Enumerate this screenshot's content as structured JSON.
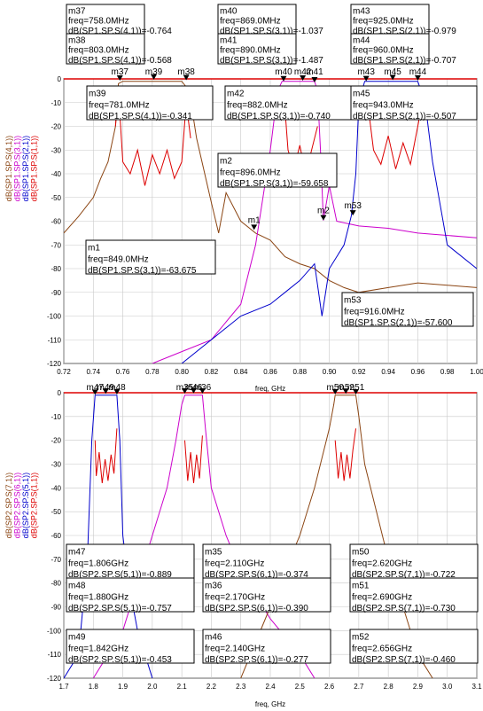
{
  "chart_data": [
    {
      "type": "line",
      "xlabel": "freq, GHz",
      "ylabel_series": [
        {
          "label": "dB(SP1.SP.S(4,1))",
          "color": "#8b4513"
        },
        {
          "label": "dB(SP1.SP.S(3,1))",
          "color": "#cc00cc"
        },
        {
          "label": "dB(SP1.SP.S(2,1))",
          "color": "#0000cc"
        },
        {
          "label": "dB(SP1.SP.S(1,1))",
          "color": "#dd0000"
        }
      ],
      "xlim": [
        0.72,
        1.0
      ],
      "ylim": [
        -120,
        0
      ],
      "xticks": [
        0.72,
        0.74,
        0.76,
        0.78,
        0.8,
        0.82,
        0.84,
        0.86,
        0.88,
        0.9,
        0.92,
        0.94,
        0.96,
        0.98,
        1.0
      ],
      "xtick_labels": [
        "0.72",
        "0.74",
        "0.76",
        "0.78",
        "0.80",
        "0.82",
        "0.84",
        "0.86",
        "0.88",
        "0.90",
        "0.92",
        "0.94",
        "0.96",
        "0.98",
        "1.00"
      ],
      "yticks": [
        0,
        -10,
        -20,
        -30,
        -40,
        -50,
        -60,
        -70,
        -80,
        -90,
        -100,
        -110,
        -120
      ],
      "ytick_labels": [
        "0",
        "-10",
        "-20",
        "-30",
        "-40",
        "-50",
        "-60",
        "-70",
        "-80",
        "-90",
        "-100",
        "-110",
        "-120"
      ],
      "series": [
        {
          "color": "#8b4513",
          "x": [
            0.72,
            0.73,
            0.74,
            0.745,
            0.75,
            0.755,
            0.757,
            0.76,
            0.8,
            0.805,
            0.81,
            0.82,
            0.825,
            0.83,
            0.84,
            0.85,
            0.86,
            0.87,
            0.88,
            0.89,
            0.9,
            0.91,
            0.92,
            0.94,
            0.96,
            0.98,
            1.0
          ],
          "y": [
            -65,
            -58,
            -50,
            -42,
            -35,
            -20,
            -2,
            -1,
            -1,
            -5,
            -25,
            -52,
            -65,
            -48,
            -60,
            -65,
            -68,
            -75,
            -78,
            -80,
            -85,
            -88,
            -90,
            -88,
            -86,
            -87,
            -88
          ]
        },
        {
          "color": "#cc00cc",
          "x": [
            0.78,
            0.8,
            0.82,
            0.84,
            0.85,
            0.86,
            0.865,
            0.868,
            0.87,
            0.89,
            0.892,
            0.894,
            0.896,
            0.9,
            0.905,
            0.92,
            0.94,
            0.96,
            1.0
          ],
          "y": [
            -120,
            -115,
            -110,
            -95,
            -70,
            -30,
            -5,
            -1,
            -1,
            -1,
            -5,
            -30,
            -59.7,
            -45,
            -60,
            -62,
            -63,
            -65,
            -67
          ]
        },
        {
          "color": "#0000cc",
          "x": [
            0.8,
            0.84,
            0.86,
            0.87,
            0.88,
            0.89,
            0.895,
            0.9,
            0.91,
            0.915,
            0.918,
            0.92,
            0.924,
            0.96,
            0.965,
            0.97,
            0.98,
            1.0
          ],
          "y": [
            -120,
            -100,
            -95,
            -90,
            -85,
            -78,
            -100,
            -80,
            -70,
            -57.6,
            -40,
            -10,
            -1,
            -1,
            -10,
            -35,
            -70,
            -80
          ]
        },
        {
          "color": "#dd0000",
          "x": [
            0.755,
            0.757,
            0.76,
            0.765,
            0.77,
            0.775,
            0.78,
            0.785,
            0.79,
            0.795,
            0.8,
            0.803,
            0.806
          ],
          "y": [
            -20,
            -5,
            -35,
            -40,
            -30,
            -45,
            -32,
            -40,
            -30,
            -42,
            -35,
            -10,
            -25
          ]
        },
        {
          "color": "#dd0000",
          "x": [
            0.867,
            0.869,
            0.872,
            0.876,
            0.88,
            0.884,
            0.888,
            0.892
          ],
          "y": [
            -15,
            -5,
            -30,
            -38,
            -28,
            -40,
            -30,
            -20
          ]
        },
        {
          "color": "#dd0000",
          "x": [
            0.922,
            0.925,
            0.93,
            0.935,
            0.94,
            0.945,
            0.95,
            0.955,
            0.96,
            0.963
          ],
          "y": [
            -15,
            -5,
            -30,
            -36,
            -24,
            -38,
            -27,
            -36,
            -20,
            -10
          ]
        }
      ],
      "markers_on_plot": [
        {
          "name": "m37",
          "x": 0.758,
          "y": -0.764
        },
        {
          "name": "m39",
          "x": 0.781,
          "y": -0.341
        },
        {
          "name": "m38",
          "x": 0.803,
          "y": -0.568
        },
        {
          "name": "m40",
          "x": 0.869,
          "y": -1.037
        },
        {
          "name": "m42",
          "x": 0.882,
          "y": -0.74
        },
        {
          "name": "m41",
          "x": 0.89,
          "y": -1.487
        },
        {
          "name": "m43",
          "x": 0.925,
          "y": -0.979
        },
        {
          "name": "m45",
          "x": 0.943,
          "y": -0.507
        },
        {
          "name": "m44",
          "x": 0.96,
          "y": -0.707
        },
        {
          "name": "m1",
          "x": 0.849,
          "y": -63.675
        },
        {
          "name": "m2",
          "x": 0.896,
          "y": -59.658
        },
        {
          "name": "m53",
          "x": 0.916,
          "y": -57.6
        }
      ],
      "marker_boxes": [
        {
          "name": "m37",
          "line1": "freq=758.0MHz",
          "line2": "dB(SP1.SP.S(4,1))=-0.764"
        },
        {
          "name": "m38",
          "line1": "freq=803.0MHz",
          "line2": "dB(SP1.SP.S(4,1))=-0.568"
        },
        {
          "name": "m40",
          "line1": "freq=869.0MHz",
          "line2": "dB(SP1.SP.S(3,1))=-1.037"
        },
        {
          "name": "m41",
          "line1": "freq=890.0MHz",
          "line2": "dB(SP1.SP.S(3,1))=-1.487"
        },
        {
          "name": "m43",
          "line1": "freq=925.0MHz",
          "line2": "dB(SP1.SP.S(2,1))=-0.979"
        },
        {
          "name": "m44",
          "line1": "freq=960.0MHz",
          "line2": "dB(SP1.SP.S(2,1))=-0.707"
        },
        {
          "name": "m39",
          "line1": "freq=781.0MHz",
          "line2": "dB(SP1.SP.S(4,1))=-0.341"
        },
        {
          "name": "m42",
          "line1": "freq=882.0MHz",
          "line2": "dB(SP1.SP.S(3,1))=-0.740"
        },
        {
          "name": "m45",
          "line1": "freq=943.0MHz",
          "line2": "dB(SP1.SP.S(2,1))=-0.507"
        },
        {
          "name": "m2",
          "line1": "freq=896.0MHz",
          "line2": "dB(SP1.SP.S(3,1))=-59.658"
        },
        {
          "name": "m1",
          "line1": "freq=849.0MHz",
          "line2": "dB(SP1.SP.S(3,1))=-63.675"
        },
        {
          "name": "m53",
          "line1": "freq=916.0MHz",
          "line2": "dB(SP1.SP.S(2,1))=-57.600"
        }
      ]
    },
    {
      "type": "line",
      "xlabel": "freq, GHz",
      "ylabel_series": [
        {
          "label": "dB(SP2.SP.S(7,1))",
          "color": "#8b4513"
        },
        {
          "label": "dB(SP2.SP.S(6,1))",
          "color": "#cc00cc"
        },
        {
          "label": "dB(SP2.SP.S(5,1))",
          "color": "#0000cc"
        },
        {
          "label": "dB(SP2.SP.S(1,1))",
          "color": "#dd0000"
        }
      ],
      "xlim": [
        1.7,
        3.1
      ],
      "ylim": [
        -120,
        0
      ],
      "xticks": [
        1.7,
        1.8,
        1.9,
        2.0,
        2.1,
        2.2,
        2.3,
        2.4,
        2.5,
        2.6,
        2.7,
        2.8,
        2.9,
        3.0,
        3.1
      ],
      "xtick_labels": [
        "1.7",
        "1.8",
        "1.9",
        "2.0",
        "2.1",
        "2.2",
        "2.3",
        "2.4",
        "2.5",
        "2.6",
        "2.7",
        "2.8",
        "2.9",
        "3.0",
        "3.1"
      ],
      "yticks": [
        0,
        -10,
        -20,
        -30,
        -40,
        -50,
        -60,
        -70,
        -80,
        -90,
        -100,
        -110,
        -120
      ],
      "ytick_labels": [
        "0",
        "-10",
        "-20",
        "-30",
        "-40",
        "-50",
        "-60",
        "-70",
        "-80",
        "-90",
        "-100",
        "-110",
        "-120"
      ],
      "series": [
        {
          "color": "#0000cc",
          "x": [
            1.7,
            1.75,
            1.78,
            1.795,
            1.806,
            1.88,
            1.89,
            1.9,
            1.92,
            1.95,
            2.0
          ],
          "y": [
            -120,
            -110,
            -70,
            -20,
            -1,
            -1,
            -20,
            -60,
            -80,
            -100,
            -120
          ]
        },
        {
          "color": "#cc00cc",
          "x": [
            1.8,
            1.9,
            1.95,
            2.0,
            2.05,
            2.08,
            2.1,
            2.11,
            2.17,
            2.18,
            2.2,
            2.25,
            2.3,
            2.4,
            2.5,
            2.55
          ],
          "y": [
            -120,
            -100,
            -80,
            -60,
            -40,
            -20,
            -5,
            -1,
            -1,
            -15,
            -40,
            -60,
            -75,
            -95,
            -110,
            -120
          ]
        },
        {
          "color": "#8b4513",
          "x": [
            2.3,
            2.4,
            2.5,
            2.55,
            2.6,
            2.615,
            2.62,
            2.69,
            2.7,
            2.72,
            2.8,
            2.85,
            2.9,
            2.95
          ],
          "y": [
            -120,
            -90,
            -60,
            -40,
            -15,
            -5,
            -1,
            -1,
            -10,
            -30,
            -70,
            -90,
            -110,
            -120
          ]
        },
        {
          "color": "#dd0000",
          "x": [
            1.806,
            1.81,
            1.82,
            1.83,
            1.84,
            1.85,
            1.86,
            1.87,
            1.88
          ],
          "y": [
            -20,
            -35,
            -25,
            -38,
            -28,
            -37,
            -26,
            -34,
            -15
          ]
        },
        {
          "color": "#dd0000",
          "x": [
            2.11,
            2.12,
            2.13,
            2.14,
            2.15,
            2.16,
            2.17
          ],
          "y": [
            -20,
            -37,
            -25,
            -38,
            -26,
            -36,
            -18
          ]
        },
        {
          "color": "#dd0000",
          "x": [
            2.62,
            2.63,
            2.64,
            2.65,
            2.66,
            2.67,
            2.68,
            2.69
          ],
          "y": [
            -20,
            -36,
            -25,
            -37,
            -26,
            -36,
            -24,
            -15
          ]
        }
      ],
      "markers_on_plot": [
        {
          "name": "m47",
          "x": 1.806,
          "y": -0.889
        },
        {
          "name": "m49",
          "x": 1.842,
          "y": -0.453
        },
        {
          "name": "m48",
          "x": 1.88,
          "y": -0.757
        },
        {
          "name": "m35",
          "x": 2.11,
          "y": -0.374
        },
        {
          "name": "m46",
          "x": 2.14,
          "y": -0.277
        },
        {
          "name": "m36",
          "x": 2.17,
          "y": -0.39
        },
        {
          "name": "m50",
          "x": 2.62,
          "y": -0.722
        },
        {
          "name": "m52",
          "x": 2.656,
          "y": -0.46
        },
        {
          "name": "m51",
          "x": 2.69,
          "y": -0.73
        }
      ],
      "top_marker_labels": [
        "m47",
        "m49",
        "m48",
        "m35",
        "m46",
        "m36",
        "m50",
        "m52",
        "m51"
      ],
      "marker_boxes": [
        {
          "name": "m47",
          "line1": "freq=1.806GHz",
          "line2": "dB(SP2.SP.S(5,1))=-0.889"
        },
        {
          "name": "m35",
          "line1": "freq=2.110GHz",
          "line2": "dB(SP2.SP.S(6,1))=-0.374"
        },
        {
          "name": "m50",
          "line1": "freq=2.620GHz",
          "line2": "dB(SP2.SP.S(7,1))=-0.722"
        },
        {
          "name": "m48",
          "line1": "freq=1.880GHz",
          "line2": "dB(SP2.SP.S(5,1))=-0.757"
        },
        {
          "name": "m36",
          "line1": "freq=2.170GHz",
          "line2": "dB(SP2.SP.S(6,1))=-0.390"
        },
        {
          "name": "m51",
          "line1": "freq=2.690GHz",
          "line2": "dB(SP2.SP.S(7,1))=-0.730"
        },
        {
          "name": "m49",
          "line1": "freq=1.842GHz",
          "line2": "dB(SP2.SP.S(5,1))=-0.453"
        },
        {
          "name": "m46",
          "line1": "freq=2.140GHz",
          "line2": "dB(SP2.SP.S(6,1))=-0.277"
        },
        {
          "name": "m52",
          "line1": "freq=2.656GHz",
          "line2": "dB(SP2.SP.S(7,1))=-0.460"
        }
      ]
    }
  ]
}
